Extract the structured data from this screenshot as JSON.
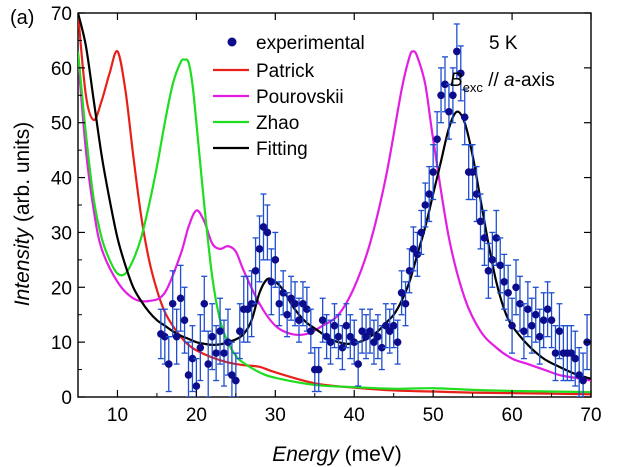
{
  "chart_data": {
    "type": "line",
    "panel_label": "(a)",
    "title": "",
    "xlabel_italic": "Energy",
    "xlabel_unit": "(meV)",
    "ylabel_italic": "Intensity",
    "ylabel_unit": "(arb. units)",
    "xlim": [
      5,
      70
    ],
    "ylim": [
      0,
      70
    ],
    "xticks": [
      "10",
      "20",
      "30",
      "40",
      "50",
      "60",
      "70"
    ],
    "yticks": [
      "0",
      "10",
      "20",
      "30",
      "40",
      "50",
      "60",
      "70"
    ],
    "grid": false,
    "legend_position": "top-center",
    "annotations": {
      "temperature": "5 K",
      "field_B": "B",
      "field_sub": "exc",
      "field_rest": " // ",
      "field_axis_italic": "a",
      "field_axis_rest": "-axis"
    },
    "series": [
      {
        "name": "experimental",
        "kind": "scatter_errorbar",
        "color": "#0d0d8c",
        "errcolor": "#1f4fd1",
        "points": [
          [
            15.5,
            11.5,
            4.5
          ],
          [
            16,
            11,
            5
          ],
          [
            16.5,
            6,
            5
          ],
          [
            17,
            17,
            6
          ],
          [
            17.5,
            11,
            5
          ],
          [
            18,
            18,
            6
          ],
          [
            18.5,
            14,
            6
          ],
          [
            19,
            4,
            6
          ],
          [
            19.5,
            7,
            6
          ],
          [
            20,
            2,
            5
          ],
          [
            20.5,
            9,
            6
          ],
          [
            21,
            17,
            5
          ],
          [
            21.5,
            6,
            6
          ],
          [
            22,
            11,
            6
          ],
          [
            22.5,
            8,
            5
          ],
          [
            23,
            12,
            6
          ],
          [
            23.5,
            8,
            6
          ],
          [
            24,
            10,
            6
          ],
          [
            24.5,
            4,
            6
          ],
          [
            25,
            3,
            5
          ],
          [
            25.5,
            12,
            5
          ],
          [
            26,
            16,
            6
          ],
          [
            26.5,
            16,
            6
          ],
          [
            27,
            17,
            6
          ],
          [
            27.5,
            23,
            6
          ],
          [
            28,
            27,
            6
          ],
          [
            28.5,
            31,
            6
          ],
          [
            29,
            30,
            5
          ],
          [
            29.5,
            21,
            6
          ],
          [
            30,
            25,
            5
          ],
          [
            30.5,
            17,
            4
          ],
          [
            31,
            19,
            4
          ],
          [
            31.5,
            15,
            4
          ],
          [
            32,
            18,
            4
          ],
          [
            32.5,
            17,
            4
          ],
          [
            33,
            14,
            4
          ],
          [
            33.5,
            17,
            4
          ],
          [
            34,
            16,
            4
          ],
          [
            34.5,
            12,
            4
          ],
          [
            35,
            5,
            4
          ],
          [
            35.5,
            5,
            4
          ],
          [
            36,
            14,
            4
          ],
          [
            36.5,
            11,
            4
          ],
          [
            37,
            10,
            4
          ],
          [
            37.5,
            13,
            4
          ],
          [
            38,
            11,
            4
          ],
          [
            38.5,
            9,
            4
          ],
          [
            39,
            13,
            4
          ],
          [
            39.5,
            11,
            4
          ],
          [
            40,
            10,
            4
          ],
          [
            40.5,
            6,
            4
          ],
          [
            41,
            12,
            4
          ],
          [
            41.5,
            11,
            4
          ],
          [
            42,
            12,
            4
          ],
          [
            42.5,
            10,
            4
          ],
          [
            43,
            11,
            4
          ],
          [
            43.5,
            9,
            4
          ],
          [
            44,
            13,
            4
          ],
          [
            44.5,
            12,
            4
          ],
          [
            45,
            13,
            4
          ],
          [
            45.5,
            10,
            4
          ],
          [
            46,
            19,
            4
          ],
          [
            46.5,
            17,
            4
          ],
          [
            47,
            23,
            4
          ],
          [
            47.5,
            27,
            4
          ],
          [
            48,
            26,
            4
          ],
          [
            48.5,
            30,
            4
          ],
          [
            49,
            35,
            4
          ],
          [
            49.5,
            37,
            5
          ],
          [
            50,
            41,
            5
          ],
          [
            50.5,
            47,
            5
          ],
          [
            51,
            55,
            5
          ],
          [
            51.5,
            57,
            5
          ],
          [
            52,
            52,
            5
          ],
          [
            52.5,
            55,
            5
          ],
          [
            53,
            63,
            5
          ],
          [
            53.5,
            59,
            5
          ],
          [
            54,
            51,
            5
          ],
          [
            54.5,
            41,
            5
          ],
          [
            55,
            41,
            5
          ],
          [
            55.5,
            37,
            5
          ],
          [
            56,
            32,
            5
          ],
          [
            56.5,
            29,
            5
          ],
          [
            57,
            23,
            5
          ],
          [
            57.5,
            25,
            5
          ],
          [
            58,
            29,
            5
          ],
          [
            58.5,
            24,
            5
          ],
          [
            59,
            21,
            5
          ],
          [
            59.5,
            19,
            5
          ],
          [
            60,
            13,
            5
          ],
          [
            60.5,
            20,
            5
          ],
          [
            61,
            17,
            5
          ],
          [
            61.5,
            12,
            5
          ],
          [
            62,
            16,
            5
          ],
          [
            62.5,
            13,
            5
          ],
          [
            63,
            15,
            5
          ],
          [
            63.5,
            11,
            5
          ],
          [
            64,
            14,
            5
          ],
          [
            64.5,
            16,
            5
          ],
          [
            65,
            14,
            5
          ],
          [
            65.5,
            8,
            5
          ],
          [
            66,
            12,
            5
          ],
          [
            66.5,
            8,
            5
          ],
          [
            67,
            8,
            5
          ],
          [
            67.5,
            8,
            5
          ],
          [
            68,
            7,
            5
          ],
          [
            68.5,
            4,
            5
          ],
          [
            69,
            3,
            5
          ],
          [
            69.5,
            10,
            5
          ]
        ]
      },
      {
        "name": "Patrick",
        "kind": "line",
        "color": "#e8201a",
        "x": [
          5,
          6,
          7,
          8,
          9,
          10,
          11,
          12,
          13,
          14,
          15,
          16,
          17,
          18,
          19,
          20,
          22,
          24,
          26,
          28,
          30,
          35,
          40,
          45,
          50,
          55,
          60,
          65,
          70
        ],
        "y": [
          70,
          55,
          50.5,
          54,
          59,
          63,
          56,
          44,
          33,
          25,
          19.5,
          15.5,
          13,
          11,
          9.5,
          8.5,
          7.2,
          6.3,
          5.8,
          5.5,
          4.5,
          2.5,
          1.7,
          1.2,
          1.0,
          0.8,
          0.7,
          0.6,
          0.5
        ]
      },
      {
        "name": "Pourovskii",
        "kind": "line",
        "color": "#e31ee3",
        "x": [
          5,
          6,
          7,
          8,
          10,
          12,
          14,
          16,
          18,
          19,
          20,
          21,
          22,
          23,
          24,
          25,
          26,
          28,
          30,
          32,
          34,
          36,
          38,
          40,
          42,
          44,
          46,
          47,
          47.5,
          48,
          49,
          50,
          52,
          54,
          56,
          58,
          60,
          62,
          64,
          66,
          68,
          70
        ],
        "y": [
          62,
          45,
          34,
          27,
          21,
          18,
          17.5,
          19,
          26,
          31,
          34,
          32,
          28,
          27,
          27.5,
          26.5,
          23,
          17,
          13,
          11.5,
          11.5,
          13,
          15,
          20,
          28,
          40,
          56,
          62,
          63,
          62,
          57,
          47,
          29,
          18,
          12,
          9,
          7,
          6,
          5,
          4,
          3.5,
          3
        ]
      },
      {
        "name": "Zhao",
        "kind": "line",
        "color": "#1fdd1f",
        "x": [
          5,
          6,
          7,
          8,
          9,
          10,
          11,
          12,
          13,
          14,
          15,
          16,
          17,
          18,
          18.5,
          19,
          19.5,
          20,
          21,
          22,
          23,
          24,
          25,
          26,
          28,
          30,
          35,
          40,
          45,
          50,
          55,
          60,
          65,
          70
        ],
        "y": [
          63,
          48,
          36,
          29,
          25,
          22.5,
          22.5,
          25,
          29,
          35,
          42,
          50,
          57,
          61,
          61.5,
          61,
          57,
          50,
          35,
          22,
          14,
          10,
          7.5,
          6.2,
          4.5,
          3.5,
          2.2,
          1.8,
          1.5,
          1.6,
          1.3,
          1.1,
          1.0,
          0.9
        ]
      },
      {
        "name": "Fitting",
        "kind": "line",
        "color": "#000000",
        "x": [
          5,
          6,
          7,
          8,
          9,
          10,
          11,
          12,
          13,
          14,
          15,
          16,
          17,
          18,
          19,
          20,
          21,
          22,
          23,
          24,
          25,
          26,
          27,
          28,
          29,
          30,
          31,
          32,
          33,
          34,
          35,
          36,
          37,
          38,
          39,
          40,
          41,
          42,
          43,
          44,
          45,
          46,
          47,
          48,
          49,
          50,
          51,
          52,
          53,
          54,
          55,
          56,
          57,
          58,
          59,
          60,
          62,
          64,
          66,
          68,
          70
        ],
        "y": [
          70,
          64,
          54,
          44,
          36,
          29,
          24,
          20,
          17.5,
          15.5,
          14,
          13,
          12,
          11.2,
          10.6,
          10,
          9.7,
          9.5,
          9.6,
          10,
          10.5,
          11.5,
          14,
          19,
          21.5,
          21,
          19.5,
          17,
          15,
          13.5,
          12.5,
          11.5,
          10.5,
          10,
          9.7,
          9.8,
          10.2,
          11,
          12,
          13.5,
          15,
          17.5,
          21,
          26,
          31,
          37,
          43,
          49,
          52,
          50,
          44,
          36,
          28,
          21,
          16,
          13,
          9.5,
          7,
          5.5,
          4.2,
          3.3
        ]
      }
    ]
  }
}
